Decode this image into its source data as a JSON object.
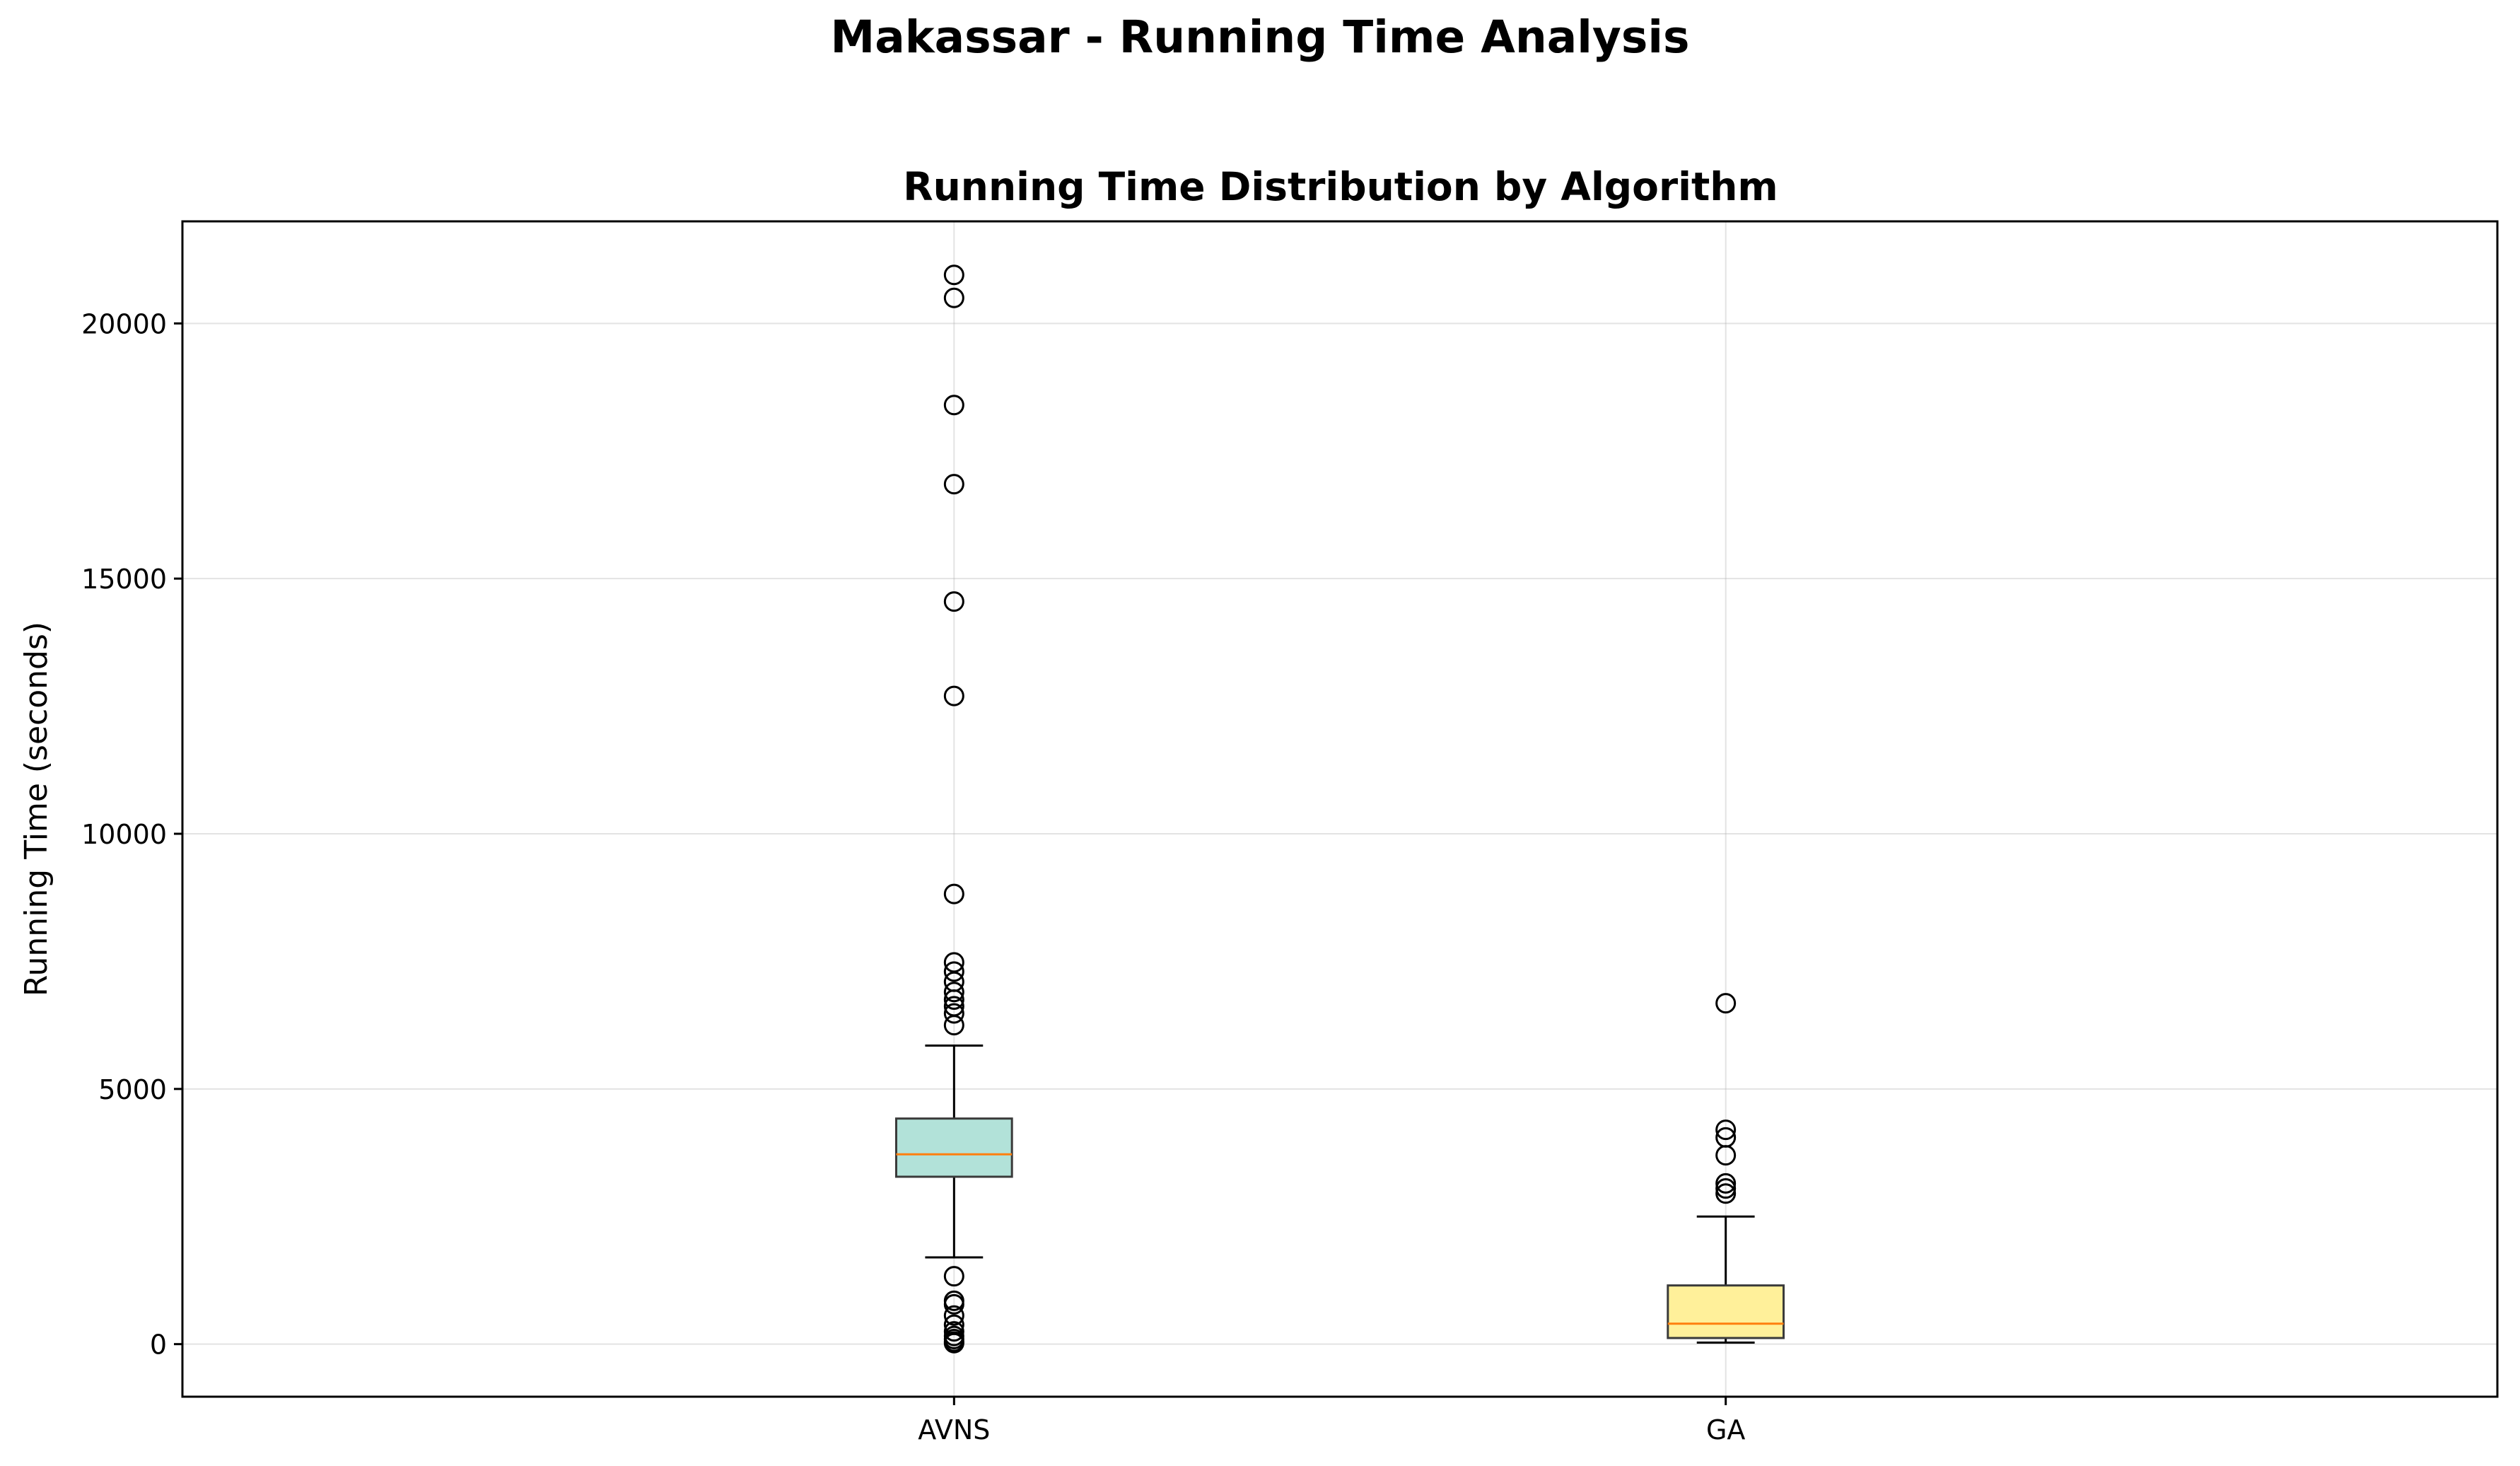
{
  "figure": {
    "suptitle": "Makassar - Running Time Analysis"
  },
  "chart_data": {
    "type": "boxplot",
    "title": "Running Time Distribution by Algorithm",
    "xlabel": "",
    "ylabel": "Running Time (seconds)",
    "ylim": [
      -1030,
      22000
    ],
    "yticks": [
      0,
      5000,
      10000,
      15000,
      20000
    ],
    "grid": true,
    "categories": [
      "AVNS",
      "GA"
    ],
    "boxes": [
      {
        "category": "AVNS",
        "color": "#b2e2d9",
        "whisker_low": 1700,
        "q1": 3280,
        "median": 3720,
        "q3": 4420,
        "whisker_high": 5850,
        "outliers": [
          20950,
          20500,
          18400,
          16850,
          14550,
          12700,
          8820,
          7480,
          7300,
          7100,
          6900,
          6750,
          6620,
          6480,
          6250,
          1330,
          850,
          780,
          560,
          380,
          250,
          160,
          100,
          50,
          20
        ]
      },
      {
        "category": "GA",
        "color": "#fff09a",
        "whisker_low": 30,
        "q1": 120,
        "median": 400,
        "q3": 1150,
        "whisker_high": 2500,
        "outliers": [
          6680,
          4200,
          4050,
          3700,
          3150,
          3050,
          2950
        ]
      }
    ],
    "median_color": "#ff7f0e"
  }
}
